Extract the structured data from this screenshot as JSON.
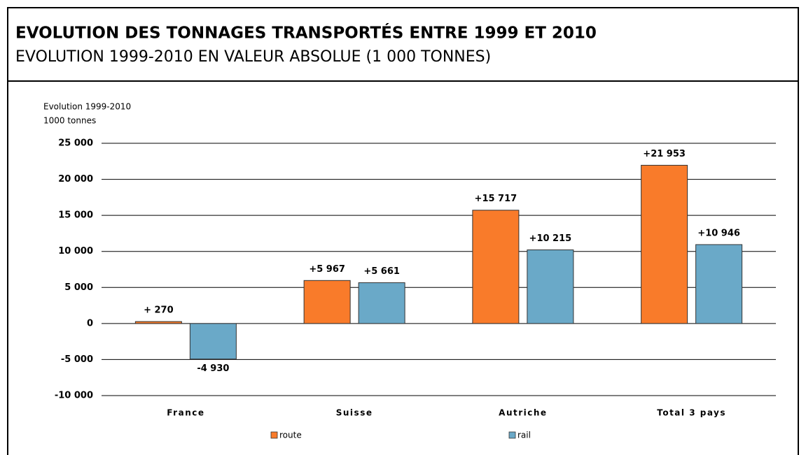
{
  "chart_data": {
    "type": "bar",
    "title": "EVOLUTION DES TONNAGES TRANSPORTÉS ENTRE 1999 ET 2010",
    "subtitle": "EVOLUTION 1999-2010 EN VALEUR ABSOLUE (1 000 TONNES)",
    "ylabel": [
      "Evolution 1999-2010",
      "1000 tonnes"
    ],
    "categories": [
      "France",
      "Suisse",
      "Autriche",
      "Total 3 pays"
    ],
    "series": [
      {
        "name": "route",
        "color": "#f97b2a",
        "values": [
          270,
          5967,
          15717,
          21953
        ],
        "value_labels": [
          "+ 270",
          "+5 967",
          "+15 717",
          "+21 953"
        ]
      },
      {
        "name": "rail",
        "color": "#6aa9c8",
        "values": [
          -4930,
          5661,
          10215,
          10946
        ],
        "value_labels": [
          "-4 930",
          "+5 661",
          "+10 215",
          "+10 946"
        ]
      }
    ],
    "ylim": [
      -10000,
      25000
    ],
    "yticks": [
      {
        "value": -10000,
        "label": "-10 000"
      },
      {
        "value": -5000,
        "label": "-5 000"
      },
      0,
      {
        "value": 5000,
        "label": "5 000"
      },
      {
        "value": 10000,
        "label": "10 000"
      },
      {
        "value": 15000,
        "label": "15 000"
      },
      {
        "value": 20000,
        "label": "20 000"
      },
      {
        "value": 25000,
        "label": "25 000"
      }
    ],
    "grid": true,
    "legend": "bottom"
  }
}
